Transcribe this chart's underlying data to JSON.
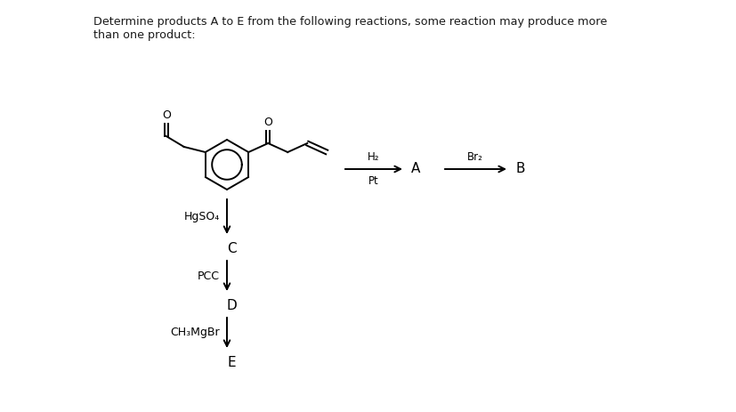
{
  "title_line1": "Determine products A to E from the following reactions, some reaction may produce more",
  "title_line2": "than one product:",
  "background_color": "#ffffff",
  "text_color": "#1a1a1a",
  "reagents": {
    "hgso4": "HgSO₄",
    "pcc": "PCC",
    "ch3mgbr": "CH₃MgBr",
    "h2": "H₂",
    "pt": "Pt",
    "br2": "Br₂"
  },
  "labels": {
    "A": "A",
    "B": "B",
    "C": "C",
    "D": "D",
    "E": "E"
  },
  "figsize": [
    8.28,
    4.63
  ],
  "dpi": 100
}
